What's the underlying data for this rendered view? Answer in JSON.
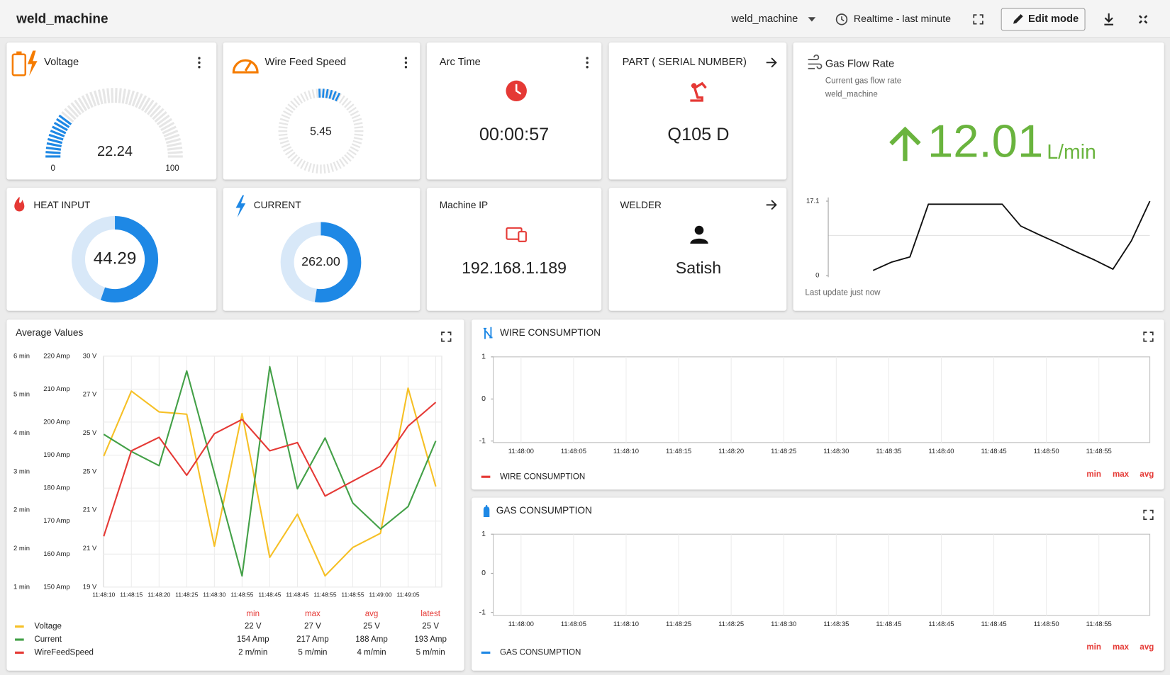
{
  "header": {
    "title": "weld_machine",
    "entity": "weld_machine",
    "timewindow": "Realtime - last minute",
    "edit_button": "Edit mode"
  },
  "voltage": {
    "title": "Voltage",
    "value": 22.24,
    "min": 0,
    "max": 100
  },
  "wire_feed_speed": {
    "title": "Wire Feed Speed",
    "value": 5.45
  },
  "arc_time": {
    "title": "Arc Time",
    "value": "00:00:57"
  },
  "part": {
    "title": "PART ( SERIAL NUMBER)",
    "value": "Q105 D"
  },
  "heat_input": {
    "title": "HEAT INPUT",
    "value": 44.29
  },
  "current": {
    "title": "CURRENT",
    "value": 262,
    "value_label": "262.00"
  },
  "machine_ip": {
    "title": "Machine IP",
    "value": "192.168.1.189"
  },
  "welder": {
    "title": "WELDER",
    "value": "Satish"
  },
  "gas_flow_rate": {
    "title": "Gas Flow Rate",
    "subtitle": "Current gas flow rate",
    "device": "weld_machine",
    "value": 12.01,
    "unit": "L/min",
    "footer": "Last update just now",
    "chart": {
      "type": "line",
      "color": "#111111",
      "categories": [
        null,
        null,
        null,
        null,
        null,
        null,
        null,
        null,
        null,
        null,
        null,
        null,
        null,
        null,
        null,
        null
      ],
      "values": [
        1.2,
        3.1,
        4.3,
        16.4,
        16.4,
        16.4,
        16.4,
        16.4,
        11.4,
        9.4,
        7.5,
        5.5,
        3.6,
        1.5,
        8.0,
        17.1
      ],
      "ylim": [
        0,
        17.1
      ],
      "yticks": [
        0,
        17.1
      ]
    }
  },
  "average_values": {
    "title": "Average Values",
    "chart": {
      "type": "line",
      "categories": [
        "11:48:10",
        "11:48:15",
        "11:48:20",
        "11:48:25",
        "11:48:30",
        "11:48:55",
        "11:48:45",
        "11:48:45",
        "11:48:55",
        "11:48:55",
        "11:49:00",
        "11:49:05",
        null
      ],
      "ylim": [
        150,
        220
      ],
      "yticks": [
        {
          "value": 220,
          "label": "220 Amp"
        },
        {
          "value": 210,
          "label": "210 Amp"
        },
        {
          "value": 200,
          "label": "200 Amp"
        },
        {
          "value": 190,
          "label": "190 Amp"
        },
        {
          "value": 180,
          "label": "180 Amp"
        },
        {
          "value": 170,
          "label": "170 Amp"
        },
        {
          "value": 160,
          "label": "160 Amp"
        },
        {
          "value": 150,
          "label": "150 Amp"
        }
      ],
      "minutes_axis_labels": [
        "6 min",
        "5 min",
        "4 min",
        "3 min",
        "2 min",
        "2 min",
        "1 min"
      ],
      "voltage_axis_labels": [
        "30 V",
        "27 V",
        "25 V",
        "25 V",
        "21 V",
        "21 V",
        "19 V"
      ],
      "series": [
        {
          "name": "Voltage",
          "color": "#f6c026",
          "values": [
            189.7,
            209.4,
            203.1,
            202.4,
            162.4,
            202.6,
            159.0,
            172.1,
            153.4,
            162.0,
            166.3,
            210.3,
            180.5
          ]
        },
        {
          "name": "Current",
          "color": "#43a047",
          "values": [
            196.3,
            191.1,
            186.8,
            215.5,
            184.5,
            153.4,
            216.8,
            179.8,
            195.2,
            175.5,
            167.6,
            174.4,
            194.3
          ]
        },
        {
          "name": "WireFeedSpeed",
          "color": "#e53935",
          "values": [
            165.4,
            191.3,
            195.4,
            183.9,
            196.5,
            200.8,
            191.3,
            193.8,
            177.6,
            182.1,
            186.6,
            198.8,
            206.0
          ]
        }
      ]
    },
    "stats": {
      "headers": [
        "min",
        "max",
        "avg",
        "latest"
      ],
      "rows": [
        [
          "22 V",
          "27 V",
          "25 V",
          "25 V"
        ],
        [
          "154 Amp",
          "217 Amp",
          "188 Amp",
          "193 Amp"
        ],
        [
          "2 m/min",
          "5 m/min",
          "4 m/min",
          "5 m/min"
        ]
      ]
    }
  },
  "wire_consumption": {
    "title": "WIRE CONSUMPTION",
    "chart": {
      "type": "line",
      "categories": [
        "11:48:00",
        "11:48:05",
        "11:48:10",
        "11:48:15",
        "11:48:20",
        "11:48:25",
        "11:48:30",
        "11:48:35",
        "11:48:40",
        "11:48:45",
        "11:48:50",
        "11:48:55"
      ],
      "ylim": [
        -1,
        1
      ],
      "yticks": [
        -1,
        0,
        1
      ],
      "series": [
        {
          "name": "WIRE CONSUMPTION",
          "color": "#e53935",
          "values": [
            null,
            null,
            null,
            null,
            null,
            null,
            null,
            null,
            null,
            null,
            null,
            null
          ]
        }
      ]
    },
    "stats_headers": [
      "min",
      "max",
      "avg"
    ]
  },
  "gas_consumption": {
    "title": "GAS CONSUMPTION",
    "chart": {
      "type": "line",
      "categories": [
        "11:48:00",
        "11:48:05",
        "11:48:10",
        "11:48:25",
        "11:48:25",
        "11:48:30",
        "11:48:35",
        "11:48:45",
        "11:48:45",
        "11:48:45",
        "11:48:50",
        "11:48:55"
      ],
      "ylim": [
        -1,
        1
      ],
      "yticks": [
        -1,
        0,
        1
      ],
      "series": [
        {
          "name": "GAS CONSUMPTION",
          "color": "#1e88e5",
          "values": [
            null,
            null,
            null,
            null,
            null,
            null,
            null,
            null,
            null,
            null,
            null,
            null
          ]
        }
      ]
    },
    "stats_headers": [
      "min",
      "max",
      "avg"
    ]
  }
}
